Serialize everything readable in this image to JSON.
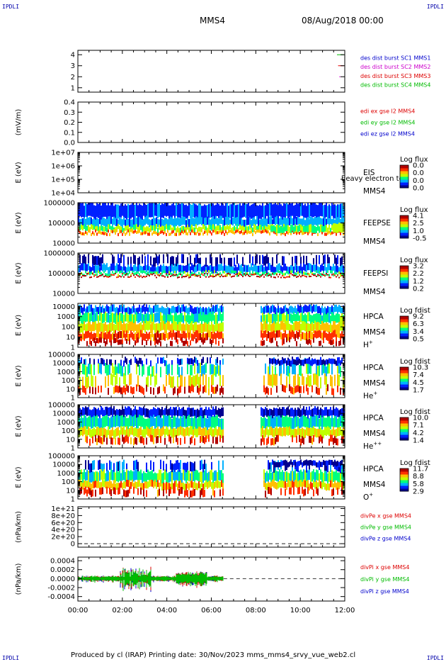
{
  "page": {
    "corner_tl": "IPDLI",
    "corner_tr": "IPDLI",
    "corner_bl": "IPDLI",
    "corner_br": "IPDLI",
    "mission": "MMS4",
    "date": "08/Aug/2018 00:00",
    "footer": "Produced by cl (IRAP)    Printing date: 30/Nov/2023    mms_mms4_srvy_vue_web2.cl"
  },
  "chart_data": {
    "type": "multi-panel",
    "xticks": [
      "00:00",
      "02:00",
      "04:00",
      "06:00",
      "08:00",
      "10:00",
      "12:00"
    ],
    "xrange_hours": [
      0,
      12
    ],
    "colorbar_palette": [
      "#000090",
      "#0020ff",
      "#00b0ff",
      "#00ff80",
      "#c0ff00",
      "#ffc000",
      "#ff3000",
      "#b00000"
    ],
    "panels": [
      {
        "id": "burst",
        "kind": "burst",
        "ylabel": "",
        "yrange": [
          0.6,
          4.4
        ],
        "yticks": [
          {
            "v": 1,
            "t": "1"
          },
          {
            "v": 2,
            "t": "2"
          },
          {
            "v": 3,
            "t": "3"
          },
          {
            "v": 4,
            "t": "4"
          }
        ],
        "legend": [
          {
            "text": "des dist burst SC1 MMS1",
            "color": "#0000cc"
          },
          {
            "text": "des dist burst SC2 MMS2",
            "color": "#cc00cc"
          },
          {
            "text": "des dist burst SC3 MMS3",
            "color": "#dd0000"
          },
          {
            "text": "des dist burst SC4 MMS4",
            "color": "#00bb00"
          }
        ],
        "marks": [
          {
            "x": 11.65,
            "x2": 11.95,
            "y": 4,
            "color": "#00bb00"
          },
          {
            "x": 11.7,
            "x2": 11.95,
            "y": 3,
            "color": "#dd0000"
          },
          {
            "x": 11.75,
            "x2": 11.8,
            "y": 2,
            "color": "#cc00cc"
          }
        ]
      },
      {
        "id": "edi",
        "kind": "empty",
        "ylabel": "(mV/m)",
        "yrange": [
          0,
          0.4
        ],
        "yticks": [
          {
            "v": 0.4,
            "t": "0.4"
          },
          {
            "v": 0.3,
            "t": "0.3"
          },
          {
            "v": 0.2,
            "t": "0.2"
          },
          {
            "v": 0.1,
            "t": "0.1"
          },
          {
            "v": 0,
            "t": "0.0"
          }
        ],
        "legend": [
          {
            "text": "edi ex gse l2 MMS4",
            "color": "#dd0000"
          },
          {
            "text": "edi ey gse l2 MMS4",
            "color": "#00bb00"
          },
          {
            "text": "edi ez gse l2 MMS4",
            "color": "#0000cc"
          }
        ]
      },
      {
        "id": "eis",
        "kind": "empty",
        "ylabel": "E (eV)",
        "yrange": [
          4,
          7
        ],
        "yticks": [
          {
            "v": 7,
            "t": "1e+07"
          },
          {
            "v": 6,
            "t": "1e+06"
          },
          {
            "v": 5,
            "t": "1e+05"
          },
          {
            "v": 4,
            "t": "1e+04"
          }
        ],
        "instrument": [
          "EIS",
          "MMS4"
        ],
        "overlay_label": "heavy electron to",
        "cb_title": "Log flux",
        "cb_labels": [
          "0.0",
          "0.0",
          "0.0",
          "0.0"
        ]
      },
      {
        "id": "feepse",
        "kind": "spec",
        "ylabel": "E (eV)",
        "yrange": [
          4,
          6
        ],
        "yticks": [
          {
            "v": 6,
            "t": "1000000"
          },
          {
            "v": 5,
            "t": "100000"
          },
          {
            "v": 4,
            "t": "10000"
          }
        ],
        "instrument": [
          "FEEPSE",
          "MMS4"
        ],
        "cb_title": "Log flux",
        "cb_labels": [
          "4.1",
          "2.5",
          "1.0",
          "-0.5"
        ],
        "spec": {
          "bands": [
            {
              "y0": 5.95,
              "y1": 5.25,
              "level": 1.2
            },
            {
              "y0": 5.25,
              "y1": 4.85,
              "level": 1.9
            },
            {
              "y0": 4.85,
              "y1": 4.6,
              "level": 3.6
            },
            {
              "y0": 4.6,
              "y1": 4.45,
              "level": 5.4
            }
          ],
          "gaps": [],
          "seed": 11,
          "jitter": 0.6,
          "events": [
            {
              "t0": 8.6,
              "t1": 11.2,
              "level": 3.2,
              "y0": 4.85,
              "y1": 4.55
            },
            {
              "t0": 11.4,
              "t1": 12.0,
              "level": 4.0,
              "y0": 5.0,
              "y1": 4.55
            }
          ]
        }
      },
      {
        "id": "feepsi",
        "kind": "spec",
        "ylabel": "E (eV)",
        "yrange": [
          4,
          6
        ],
        "yticks": [
          {
            "v": 6,
            "t": "1000000"
          },
          {
            "v": 5,
            "t": "100000"
          },
          {
            "v": 4,
            "t": "10000"
          }
        ],
        "instrument": [
          "FEEPSI",
          "MMS4"
        ],
        "cb_title": "Log flux",
        "cb_labels": [
          "3.2",
          "2.2",
          "1.2",
          "0.2"
        ],
        "spec": {
          "bands": [
            {
              "y0": 5.85,
              "y1": 5.4,
              "level": 0.3,
              "sparse": true
            },
            {
              "y0": 5.4,
              "y1": 5.05,
              "level": 1.5
            },
            {
              "y0": 5.05,
              "y1": 4.92,
              "level": 3.2
            },
            {
              "y0": 4.92,
              "y1": 4.85,
              "level": 6.8
            }
          ],
          "gaps": [],
          "seed": 23,
          "jitter": 0.5
        }
      },
      {
        "id": "hpca_h",
        "kind": "spec",
        "ylabel": "E (eV)",
        "yrange": [
          0,
          4.3
        ],
        "yticks": [
          {
            "v": 4,
            "t": "10000"
          },
          {
            "v": 3,
            "t": "1000"
          },
          {
            "v": 2,
            "t": "100"
          },
          {
            "v": 1,
            "t": "10"
          },
          {
            "v": 0,
            "t": "1"
          }
        ],
        "instrument": [
          "HPCA",
          "MMS4",
          "H+"
        ],
        "cb_title": "Log fdist",
        "cb_labels": [
          "9.2",
          "6.3",
          "3.4",
          "0.5"
        ],
        "spec": {
          "bands": [
            {
              "y0": 4.0,
              "y1": 3.3,
              "level": 1.6
            },
            {
              "y0": 3.3,
              "y1": 2.4,
              "level": 3.1
            },
            {
              "y0": 2.4,
              "y1": 1.5,
              "level": 4.6
            },
            {
              "y0": 1.5,
              "y1": 0.8,
              "level": 5.9
            },
            {
              "y0": 0.8,
              "y1": 0.3,
              "level": 6.9,
              "sparse": true
            }
          ],
          "gaps": [
            [
              6.55,
              8.2
            ]
          ],
          "seed": 37,
          "jitter": 0.8
        }
      },
      {
        "id": "hpca_he",
        "kind": "spec",
        "ylabel": "E (eV)",
        "yrange": [
          0,
          5
        ],
        "yticks": [
          {
            "v": 5,
            "t": "100000"
          },
          {
            "v": 4,
            "t": "10000"
          },
          {
            "v": 3,
            "t": "1000"
          },
          {
            "v": 2,
            "t": "100"
          },
          {
            "v": 1,
            "t": "10"
          },
          {
            "v": 0,
            "t": "1"
          }
        ],
        "instrument": [
          "HPCA",
          "MMS4",
          "He+"
        ],
        "cb_title": "Log fdist",
        "cb_labels": [
          "10.3",
          "7.4",
          "4.5",
          "1.7"
        ],
        "spec": {
          "bands": [
            {
              "y0": 4.5,
              "y1": 3.8,
              "level": 0.8,
              "sparse": true
            },
            {
              "y0": 3.8,
              "y1": 2.6,
              "level": 2.8,
              "sparse": true
            },
            {
              "y0": 2.6,
              "y1": 1.3,
              "level": 4.5,
              "sparse": true
            },
            {
              "y0": 1.3,
              "y1": 0.5,
              "level": 6.3,
              "sparse": true
            }
          ],
          "gaps": [
            [
              6.55,
              8.3
            ]
          ],
          "seed": 41,
          "jitter": 0.9,
          "events": [
            {
              "t0": 8.6,
              "t1": 11.8,
              "level": 0.5,
              "y0": 4.4,
              "y1": 3.8
            }
          ]
        }
      },
      {
        "id": "hpca_he2",
        "kind": "spec",
        "ylabel": "E (eV)",
        "yrange": [
          0,
          5
        ],
        "yticks": [
          {
            "v": 5,
            "t": "100000"
          },
          {
            "v": 4,
            "t": "10000"
          },
          {
            "v": 3,
            "t": "1000"
          },
          {
            "v": 2,
            "t": "100"
          },
          {
            "v": 1,
            "t": "10"
          },
          {
            "v": 0,
            "t": "1"
          }
        ],
        "instrument": [
          "HPCA",
          "MMS4",
          "He++"
        ],
        "cb_title": "Log fdist",
        "cb_labels": [
          "10.0",
          "7.1",
          "4.2",
          "1.4"
        ],
        "spec": {
          "bands": [
            {
              "y0": 4.6,
              "y1": 3.6,
              "level": 0.6
            },
            {
              "y0": 3.6,
              "y1": 2.3,
              "level": 2.6
            },
            {
              "y0": 2.3,
              "y1": 1.3,
              "level": 4.4
            },
            {
              "y0": 1.3,
              "y1": 0.5,
              "level": 6.2,
              "sparse": true
            }
          ],
          "gaps": [
            [
              6.55,
              8.2
            ]
          ],
          "seed": 53,
          "jitter": 0.9
        }
      },
      {
        "id": "hpca_o",
        "kind": "spec",
        "ylabel": "E (eV)",
        "yrange": [
          0,
          5
        ],
        "yticks": [
          {
            "v": 5,
            "t": "100000"
          },
          {
            "v": 4,
            "t": "10000"
          },
          {
            "v": 3,
            "t": "1000"
          },
          {
            "v": 2,
            "t": "100"
          },
          {
            "v": 1,
            "t": "10"
          },
          {
            "v": 0,
            "t": "1"
          }
        ],
        "instrument": [
          "HPCA",
          "MMS4",
          "O+"
        ],
        "cb_title": "Log fdist",
        "cb_labels": [
          "11.7",
          "8.8",
          "5.8",
          "2.9"
        ],
        "spec": {
          "bands": [
            {
              "y0": 4.3,
              "y1": 3.2,
              "level": 1.0,
              "sparse": true
            },
            {
              "y0": 3.2,
              "y1": 2.0,
              "level": 3.0
            },
            {
              "y0": 2.0,
              "y1": 1.2,
              "level": 4.8
            },
            {
              "y0": 1.2,
              "y1": 0.4,
              "level": 6.3,
              "sparse": true
            }
          ],
          "gaps": [
            [
              6.55,
              8.3
            ]
          ],
          "seed": 67,
          "jitter": 0.9,
          "events": [
            {
              "t0": 8.7,
              "t1": 11.9,
              "level": 0.4,
              "y0": 4.4,
              "y1": 3.8
            }
          ]
        }
      },
      {
        "id": "divpe",
        "kind": "line_empty",
        "ylabel": "(nPa/km)",
        "yrange": [
          -1e+20,
          1.05e+21
        ],
        "yticks": [
          {
            "v": 1e+21,
            "t": "1e+21"
          },
          {
            "v": 8e+20,
            "t": "8e+20"
          },
          {
            "v": 6e+20,
            "t": "6e+20"
          },
          {
            "v": 4e+20,
            "t": "4e+20"
          },
          {
            "v": 2e+20,
            "t": "2e+20"
          },
          {
            "v": 0,
            "t": "0"
          }
        ],
        "zero_line": 0,
        "legend": [
          {
            "text": "divPe x gse MMS4",
            "color": "#dd0000"
          },
          {
            "text": "divPe y gse MMS4",
            "color": "#00bb00"
          },
          {
            "text": "divPe z gse MMS4",
            "color": "#0000cc"
          }
        ]
      },
      {
        "id": "divpi",
        "kind": "noise",
        "ylabel": "(nPa/km)",
        "yrange": [
          -0.0005,
          0.00048
        ],
        "yticks": [
          {
            "v": 0.0004,
            "t": "0.0004"
          },
          {
            "v": 0.0002,
            "t": "0.0002"
          },
          {
            "v": 0,
            "t": "0.0000"
          },
          {
            "v": -0.0002,
            "t": "-0.0002"
          },
          {
            "v": -0.0004,
            "t": "-0.0004"
          }
        ],
        "zero_line": 0,
        "data_end_hours": 6.55,
        "legend": [
          {
            "text": "divPi x gse MMS4",
            "color": "#dd0000"
          },
          {
            "text": "divPi y gse MMS4",
            "color": "#00bb00"
          },
          {
            "text": "divPi z gse MMS4",
            "color": "#0000cc"
          }
        ]
      }
    ]
  }
}
